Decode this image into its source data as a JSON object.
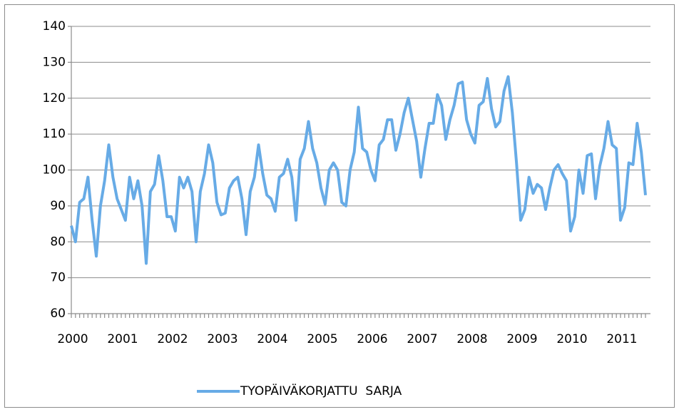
{
  "chart_data": {
    "type": "line",
    "categories": [
      "2000",
      null,
      null,
      null,
      null,
      null,
      null,
      null,
      null,
      null,
      null,
      null,
      "2001",
      null,
      null,
      null,
      null,
      null,
      null,
      null,
      null,
      null,
      null,
      null,
      "2002",
      null,
      null,
      null,
      null,
      null,
      null,
      null,
      null,
      null,
      null,
      null,
      "2003",
      null,
      null,
      null,
      null,
      null,
      null,
      null,
      null,
      null,
      null,
      null,
      "2004",
      null,
      null,
      null,
      null,
      null,
      null,
      null,
      null,
      null,
      null,
      null,
      "2005",
      null,
      null,
      null,
      null,
      null,
      null,
      null,
      null,
      null,
      null,
      null,
      "2006",
      null,
      null,
      null,
      null,
      null,
      null,
      null,
      null,
      null,
      null,
      null,
      "2007",
      null,
      null,
      null,
      null,
      null,
      null,
      null,
      null,
      null,
      null,
      null,
      "2008",
      null,
      null,
      null,
      null,
      null,
      null,
      null,
      null,
      null,
      null,
      null,
      "2009",
      null,
      null,
      null,
      null,
      null,
      null,
      null,
      null,
      null,
      null,
      null,
      "2010",
      null,
      null,
      null,
      null,
      null,
      null,
      null,
      null,
      null,
      null,
      null,
      "2011",
      null,
      null,
      null,
      null,
      null,
      null
    ],
    "series": [
      {
        "name": "TYOPÄIVÄKORJATTU  SARJA",
        "color": "#67abe6",
        "values": [
          84.5,
          80,
          91,
          92,
          98,
          86,
          76,
          90,
          97,
          107,
          98,
          92,
          89,
          86,
          98,
          92,
          97,
          90,
          74,
          94,
          96,
          104,
          97,
          87,
          87,
          83,
          98,
          95,
          98,
          94,
          80,
          94,
          99,
          107,
          102,
          91,
          87.5,
          88,
          95,
          97,
          98,
          92,
          82,
          94,
          98,
          107,
          99,
          93,
          92,
          88.5,
          98,
          99,
          103,
          98,
          86,
          103,
          106,
          113.5,
          106,
          102,
          95,
          90.5,
          100,
          102,
          100,
          91,
          90,
          100,
          105,
          117.5,
          106,
          105,
          100,
          97,
          107,
          108.5,
          114,
          114,
          105.5,
          110,
          116,
          120,
          114,
          108,
          98,
          106,
          113,
          113,
          121,
          118,
          108.5,
          114,
          118,
          124,
          124.5,
          114,
          110,
          107.5,
          118,
          119,
          125.5,
          117,
          112,
          113.5,
          122,
          126,
          116,
          102,
          86,
          89,
          98,
          93.5,
          96,
          95,
          89,
          95,
          100,
          101.5,
          99,
          97,
          83,
          87,
          100,
          93.5,
          104,
          104.5,
          92,
          101,
          106,
          113.5,
          107,
          106,
          86,
          89.5,
          102,
          101.5,
          113,
          105,
          93
        ]
      }
    ],
    "ylim": [
      60,
      140
    ],
    "yticks": [
      60,
      70,
      80,
      90,
      100,
      110,
      120,
      130,
      140
    ],
    "grid": true,
    "legend": "bottom"
  }
}
